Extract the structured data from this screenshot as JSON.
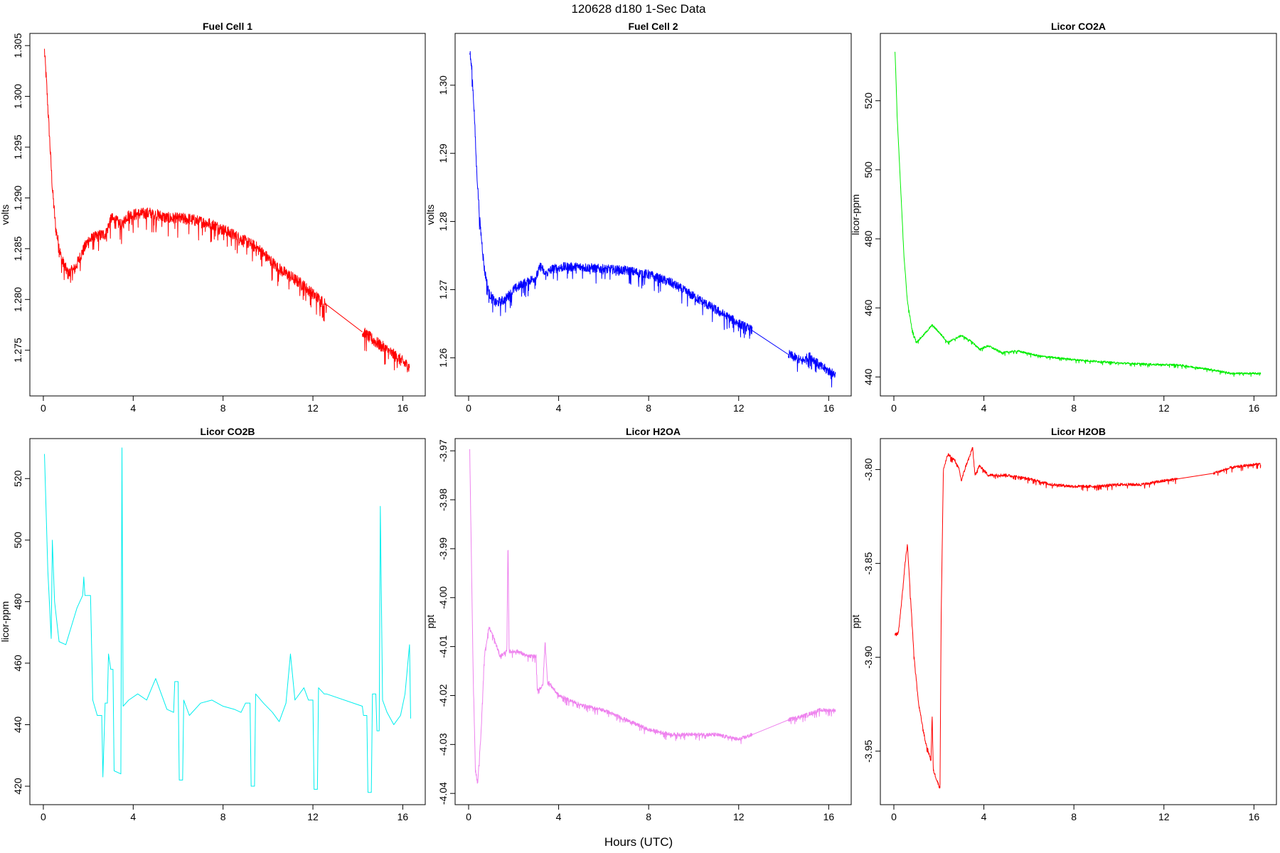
{
  "figure": {
    "title": "120628   d180   1-Sec Data",
    "xlabel": "Hours (UTC)"
  },
  "chart_data": [
    {
      "type": "line",
      "title": "Fuel Cell 1",
      "ylabel": "volts",
      "color": "#ff0000",
      "xlim": [
        -0.6,
        17.0
      ],
      "ylim": [
        1.2705,
        1.3062
      ],
      "xticks": [
        0,
        4,
        8,
        12,
        16
      ],
      "yticks": [
        1.275,
        1.28,
        1.285,
        1.29,
        1.295,
        1.3,
        1.305
      ],
      "ytick_labels": [
        "1.275",
        "1.280",
        "1.285",
        "1.290",
        "1.295",
        "1.300",
        "1.305"
      ],
      "noise": 0.0006,
      "segments": [
        [
          [
            0.05,
            1.3045
          ],
          [
            0.15,
            1.301
          ],
          [
            0.25,
            1.297
          ],
          [
            0.4,
            1.291
          ],
          [
            0.55,
            1.287
          ],
          [
            0.8,
            1.284
          ],
          [
            1.1,
            1.2825
          ],
          [
            1.4,
            1.283
          ],
          [
            1.7,
            1.2845
          ],
          [
            2.0,
            1.2858
          ],
          [
            2.4,
            1.2862
          ],
          [
            2.8,
            1.2865
          ],
          [
            3.0,
            1.288
          ],
          [
            3.3,
            1.2876
          ],
          [
            3.5,
            1.2872
          ],
          [
            3.7,
            1.2882
          ],
          [
            4.2,
            1.2884
          ],
          [
            4.8,
            1.2885
          ],
          [
            5.5,
            1.288
          ],
          [
            6.5,
            1.2879
          ],
          [
            7.5,
            1.2874
          ],
          [
            8.5,
            1.2863
          ],
          [
            9.5,
            1.2851
          ],
          [
            10.5,
            1.283
          ],
          [
            11.5,
            1.2815
          ],
          [
            12.0,
            1.2805
          ],
          [
            12.6,
            1.2795
          ]
        ],
        [
          [
            12.6,
            1.2795
          ],
          [
            14.2,
            1.2768
          ]
        ],
        [
          [
            14.2,
            1.2768
          ],
          [
            14.8,
            1.2758
          ],
          [
            15.3,
            1.275
          ],
          [
            15.8,
            1.2742
          ],
          [
            16.3,
            1.2733
          ]
        ]
      ]
    },
    {
      "type": "line",
      "title": "Fuel Cell 2",
      "ylabel": "volts",
      "color": "#0000ff",
      "xlim": [
        -0.6,
        17.0
      ],
      "ylim": [
        1.2544,
        1.3076
      ],
      "xticks": [
        0,
        4,
        8,
        12,
        16
      ],
      "yticks": [
        1.26,
        1.27,
        1.28,
        1.29,
        1.3
      ],
      "ytick_labels": [
        "1.26",
        "1.27",
        "1.28",
        "1.29",
        "1.30"
      ],
      "noise": 0.0007,
      "segments": [
        [
          [
            0.05,
            1.305
          ],
          [
            0.15,
            1.302
          ],
          [
            0.25,
            1.296
          ],
          [
            0.35,
            1.288
          ],
          [
            0.5,
            1.28
          ],
          [
            0.7,
            1.273
          ],
          [
            0.9,
            1.2695
          ],
          [
            1.2,
            1.268
          ],
          [
            1.6,
            1.2685
          ],
          [
            2.0,
            1.27
          ],
          [
            2.5,
            1.271
          ],
          [
            3.0,
            1.2718
          ],
          [
            3.2,
            1.2735
          ],
          [
            3.4,
            1.2722
          ],
          [
            3.7,
            1.273
          ],
          [
            4.2,
            1.2733
          ],
          [
            5.0,
            1.2733
          ],
          [
            6.0,
            1.273
          ],
          [
            7.0,
            1.2728
          ],
          [
            8.0,
            1.2722
          ],
          [
            9.0,
            1.271
          ],
          [
            10.0,
            1.269
          ],
          [
            11.0,
            1.267
          ],
          [
            12.0,
            1.265
          ],
          [
            12.6,
            1.264
          ]
        ],
        [
          [
            12.6,
            1.264
          ],
          [
            14.2,
            1.2605
          ]
        ],
        [
          [
            14.2,
            1.2605
          ],
          [
            14.8,
            1.2595
          ],
          [
            15.2,
            1.2602
          ],
          [
            15.6,
            1.2588
          ],
          [
            16.3,
            1.2575
          ]
        ]
      ]
    },
    {
      "type": "line",
      "title": "Licor CO2A",
      "ylabel": "licor-ppm",
      "color": "#00ee00",
      "xlim": [
        -0.6,
        17.0
      ],
      "ylim": [
        434.5,
        539.5
      ],
      "xticks": [
        0,
        4,
        8,
        12,
        16
      ],
      "yticks": [
        440,
        460,
        480,
        500,
        520
      ],
      "ytick_labels": [
        "440",
        "460",
        "480",
        "500",
        "520"
      ],
      "noise": 0.3,
      "segments": [
        [
          [
            0.05,
            535
          ],
          [
            0.15,
            515
          ],
          [
            0.3,
            495
          ],
          [
            0.45,
            475
          ],
          [
            0.6,
            462
          ],
          [
            0.8,
            454
          ],
          [
            1.0,
            450
          ],
          [
            1.3,
            452
          ],
          [
            1.7,
            455
          ],
          [
            2.0,
            453
          ],
          [
            2.4,
            450
          ],
          [
            3.0,
            452
          ],
          [
            3.5,
            450
          ],
          [
            3.8,
            448
          ],
          [
            4.2,
            449
          ],
          [
            4.8,
            447
          ],
          [
            5.5,
            447.5
          ],
          [
            6.5,
            446
          ],
          [
            8.0,
            445
          ],
          [
            10.0,
            444
          ],
          [
            12.0,
            443.5
          ],
          [
            12.6,
            443.5
          ],
          [
            14.2,
            442
          ],
          [
            15.0,
            441
          ],
          [
            16.3,
            441
          ]
        ]
      ]
    },
    {
      "type": "line",
      "title": "Licor CO2B",
      "ylabel": "licor-ppm",
      "color": "#00eeee",
      "xlim": [
        -0.6,
        17.0
      ],
      "ylim": [
        414,
        533
      ],
      "xticks": [
        0,
        4,
        8,
        12,
        16
      ],
      "yticks": [
        420,
        440,
        460,
        480,
        500,
        520
      ],
      "ytick_labels": [
        "420",
        "440",
        "460",
        "480",
        "500",
        "520"
      ],
      "noise": 0,
      "segments": [
        [
          [
            0.05,
            528
          ],
          [
            0.2,
            490
          ],
          [
            0.35,
            468
          ],
          [
            0.4,
            500
          ],
          [
            0.5,
            480
          ],
          [
            0.7,
            467
          ],
          [
            1.0,
            466
          ],
          [
            1.5,
            478
          ],
          [
            1.75,
            482
          ],
          [
            1.8,
            488
          ],
          [
            1.85,
            482
          ],
          [
            2.1,
            482
          ],
          [
            2.2,
            448
          ],
          [
            2.4,
            443
          ],
          [
            2.6,
            443
          ],
          [
            2.65,
            423
          ],
          [
            2.75,
            447
          ],
          [
            2.85,
            447
          ],
          [
            2.9,
            463
          ],
          [
            3.0,
            458
          ],
          [
            3.1,
            458
          ],
          [
            3.15,
            425
          ],
          [
            3.45,
            424
          ],
          [
            3.5,
            530
          ],
          [
            3.55,
            446
          ],
          [
            3.8,
            448
          ],
          [
            4.2,
            450
          ],
          [
            4.6,
            448
          ],
          [
            5.0,
            455
          ],
          [
            5.5,
            445
          ],
          [
            5.8,
            444
          ],
          [
            5.85,
            454
          ],
          [
            6.0,
            454
          ],
          [
            6.05,
            422
          ],
          [
            6.2,
            422
          ],
          [
            6.25,
            448
          ],
          [
            6.5,
            443
          ],
          [
            7.0,
            447
          ],
          [
            7.5,
            448
          ],
          [
            8.0,
            446
          ],
          [
            8.5,
            445
          ],
          [
            8.8,
            444
          ],
          [
            9.0,
            447
          ],
          [
            9.2,
            447
          ],
          [
            9.25,
            420
          ],
          [
            9.4,
            420
          ],
          [
            9.45,
            450
          ],
          [
            9.8,
            447
          ],
          [
            10.2,
            444
          ],
          [
            10.5,
            441
          ],
          [
            10.8,
            447
          ],
          [
            11.0,
            463
          ],
          [
            11.2,
            448
          ],
          [
            11.6,
            452
          ],
          [
            11.8,
            448
          ],
          [
            12.0,
            448
          ],
          [
            12.05,
            419
          ],
          [
            12.2,
            419
          ],
          [
            12.25,
            452
          ],
          [
            12.5,
            450
          ],
          [
            12.6,
            450
          ],
          [
            14.2,
            446
          ],
          [
            14.25,
            443
          ],
          [
            14.4,
            443
          ],
          [
            14.45,
            418
          ],
          [
            14.6,
            418
          ],
          [
            14.65,
            450
          ],
          [
            14.8,
            450
          ],
          [
            14.85,
            438
          ],
          [
            14.95,
            438
          ],
          [
            15.0,
            511
          ],
          [
            15.1,
            448
          ],
          [
            15.3,
            444
          ],
          [
            15.6,
            440
          ],
          [
            15.9,
            443
          ],
          [
            16.1,
            450
          ],
          [
            16.3,
            466
          ],
          [
            16.35,
            442
          ]
        ]
      ]
    },
    {
      "type": "line",
      "title": "Licor H2OA",
      "ylabel": "ppt",
      "color": "#ee82ee",
      "xlim": [
        -0.6,
        17.0
      ],
      "ylim": [
        -4.0423,
        -3.9675
      ],
      "xticks": [
        0,
        4,
        8,
        12,
        16
      ],
      "yticks": [
        -4.04,
        -4.03,
        -4.02,
        -4.01,
        -4.0,
        -3.99,
        -3.98,
        -3.97
      ],
      "ytick_labels": [
        "-4.04",
        "-4.03",
        "-4.02",
        "-4.01",
        "-4.00",
        "-3.99",
        "-3.98",
        "-3.97"
      ],
      "noise": 0.0004,
      "segments": [
        [
          [
            0.05,
            -3.97
          ],
          [
            0.1,
            -3.985
          ],
          [
            0.2,
            -4.015
          ],
          [
            0.3,
            -4.035
          ],
          [
            0.4,
            -4.038
          ],
          [
            0.55,
            -4.028
          ],
          [
            0.7,
            -4.012
          ],
          [
            0.9,
            -4.006
          ],
          [
            1.1,
            -4.008
          ],
          [
            1.4,
            -4.012
          ],
          [
            1.7,
            -4.011
          ],
          [
            1.75,
            -3.988
          ],
          [
            1.8,
            -4.011
          ],
          [
            2.2,
            -4.011
          ],
          [
            2.6,
            -4.012
          ],
          [
            3.0,
            -4.012
          ],
          [
            3.05,
            -4.019
          ],
          [
            3.3,
            -4.018
          ],
          [
            3.4,
            -4.009
          ],
          [
            3.5,
            -4.017
          ],
          [
            4.0,
            -4.02
          ],
          [
            5.0,
            -4.022
          ],
          [
            6.0,
            -4.023
          ],
          [
            7.0,
            -4.025
          ],
          [
            8.0,
            -4.027
          ],
          [
            9.0,
            -4.028
          ],
          [
            10.0,
            -4.028
          ],
          [
            11.0,
            -4.028
          ],
          [
            12.0,
            -4.029
          ],
          [
            12.6,
            -4.028
          ]
        ],
        [
          [
            12.6,
            -4.028
          ],
          [
            14.2,
            -4.025
          ]
        ],
        [
          [
            14.2,
            -4.025
          ],
          [
            15.0,
            -4.024
          ],
          [
            15.6,
            -4.023
          ],
          [
            16.3,
            -4.023
          ]
        ]
      ]
    },
    {
      "type": "line",
      "title": "Licor H2OB",
      "ylabel": "ppt",
      "color": "#ff0000",
      "xlim": [
        -0.6,
        17.0
      ],
      "ylim": [
        -3.9785,
        -3.7835
      ],
      "xticks": [
        0,
        4,
        8,
        12,
        16
      ],
      "yticks": [
        -3.95,
        -3.9,
        -3.85,
        -3.8
      ],
      "ytick_labels": [
        "-3.95",
        "-3.90",
        "-3.85",
        "-3.80"
      ],
      "noise": 0.0008,
      "segments": [
        [
          [
            0.05,
            -3.888
          ],
          [
            0.2,
            -3.887
          ],
          [
            0.35,
            -3.87
          ],
          [
            0.5,
            -3.85
          ],
          [
            0.6,
            -3.84
          ],
          [
            0.7,
            -3.86
          ],
          [
            0.9,
            -3.9
          ],
          [
            1.1,
            -3.925
          ],
          [
            1.4,
            -3.945
          ],
          [
            1.65,
            -3.955
          ],
          [
            1.7,
            -3.93
          ],
          [
            1.75,
            -3.96
          ],
          [
            1.9,
            -3.965
          ],
          [
            2.05,
            -3.97
          ],
          [
            2.1,
            -3.88
          ],
          [
            2.2,
            -3.8
          ],
          [
            2.4,
            -3.792
          ],
          [
            2.7,
            -3.795
          ],
          [
            2.9,
            -3.8
          ],
          [
            3.0,
            -3.806
          ],
          [
            3.2,
            -3.798
          ],
          [
            3.4,
            -3.792
          ],
          [
            3.5,
            -3.788
          ],
          [
            3.6,
            -3.803
          ],
          [
            3.8,
            -3.798
          ],
          [
            4.2,
            -3.803
          ],
          [
            5.0,
            -3.803
          ],
          [
            6.0,
            -3.805
          ],
          [
            7.0,
            -3.808
          ],
          [
            8.0,
            -3.809
          ],
          [
            9.0,
            -3.809
          ],
          [
            10.0,
            -3.808
          ],
          [
            11.0,
            -3.808
          ],
          [
            12.0,
            -3.806
          ],
          [
            12.6,
            -3.805
          ]
        ],
        [
          [
            12.6,
            -3.805
          ],
          [
            14.2,
            -3.802
          ]
        ],
        [
          [
            14.2,
            -3.802
          ],
          [
            15.0,
            -3.799
          ],
          [
            15.6,
            -3.798
          ],
          [
            16.3,
            -3.797
          ]
        ]
      ]
    }
  ]
}
